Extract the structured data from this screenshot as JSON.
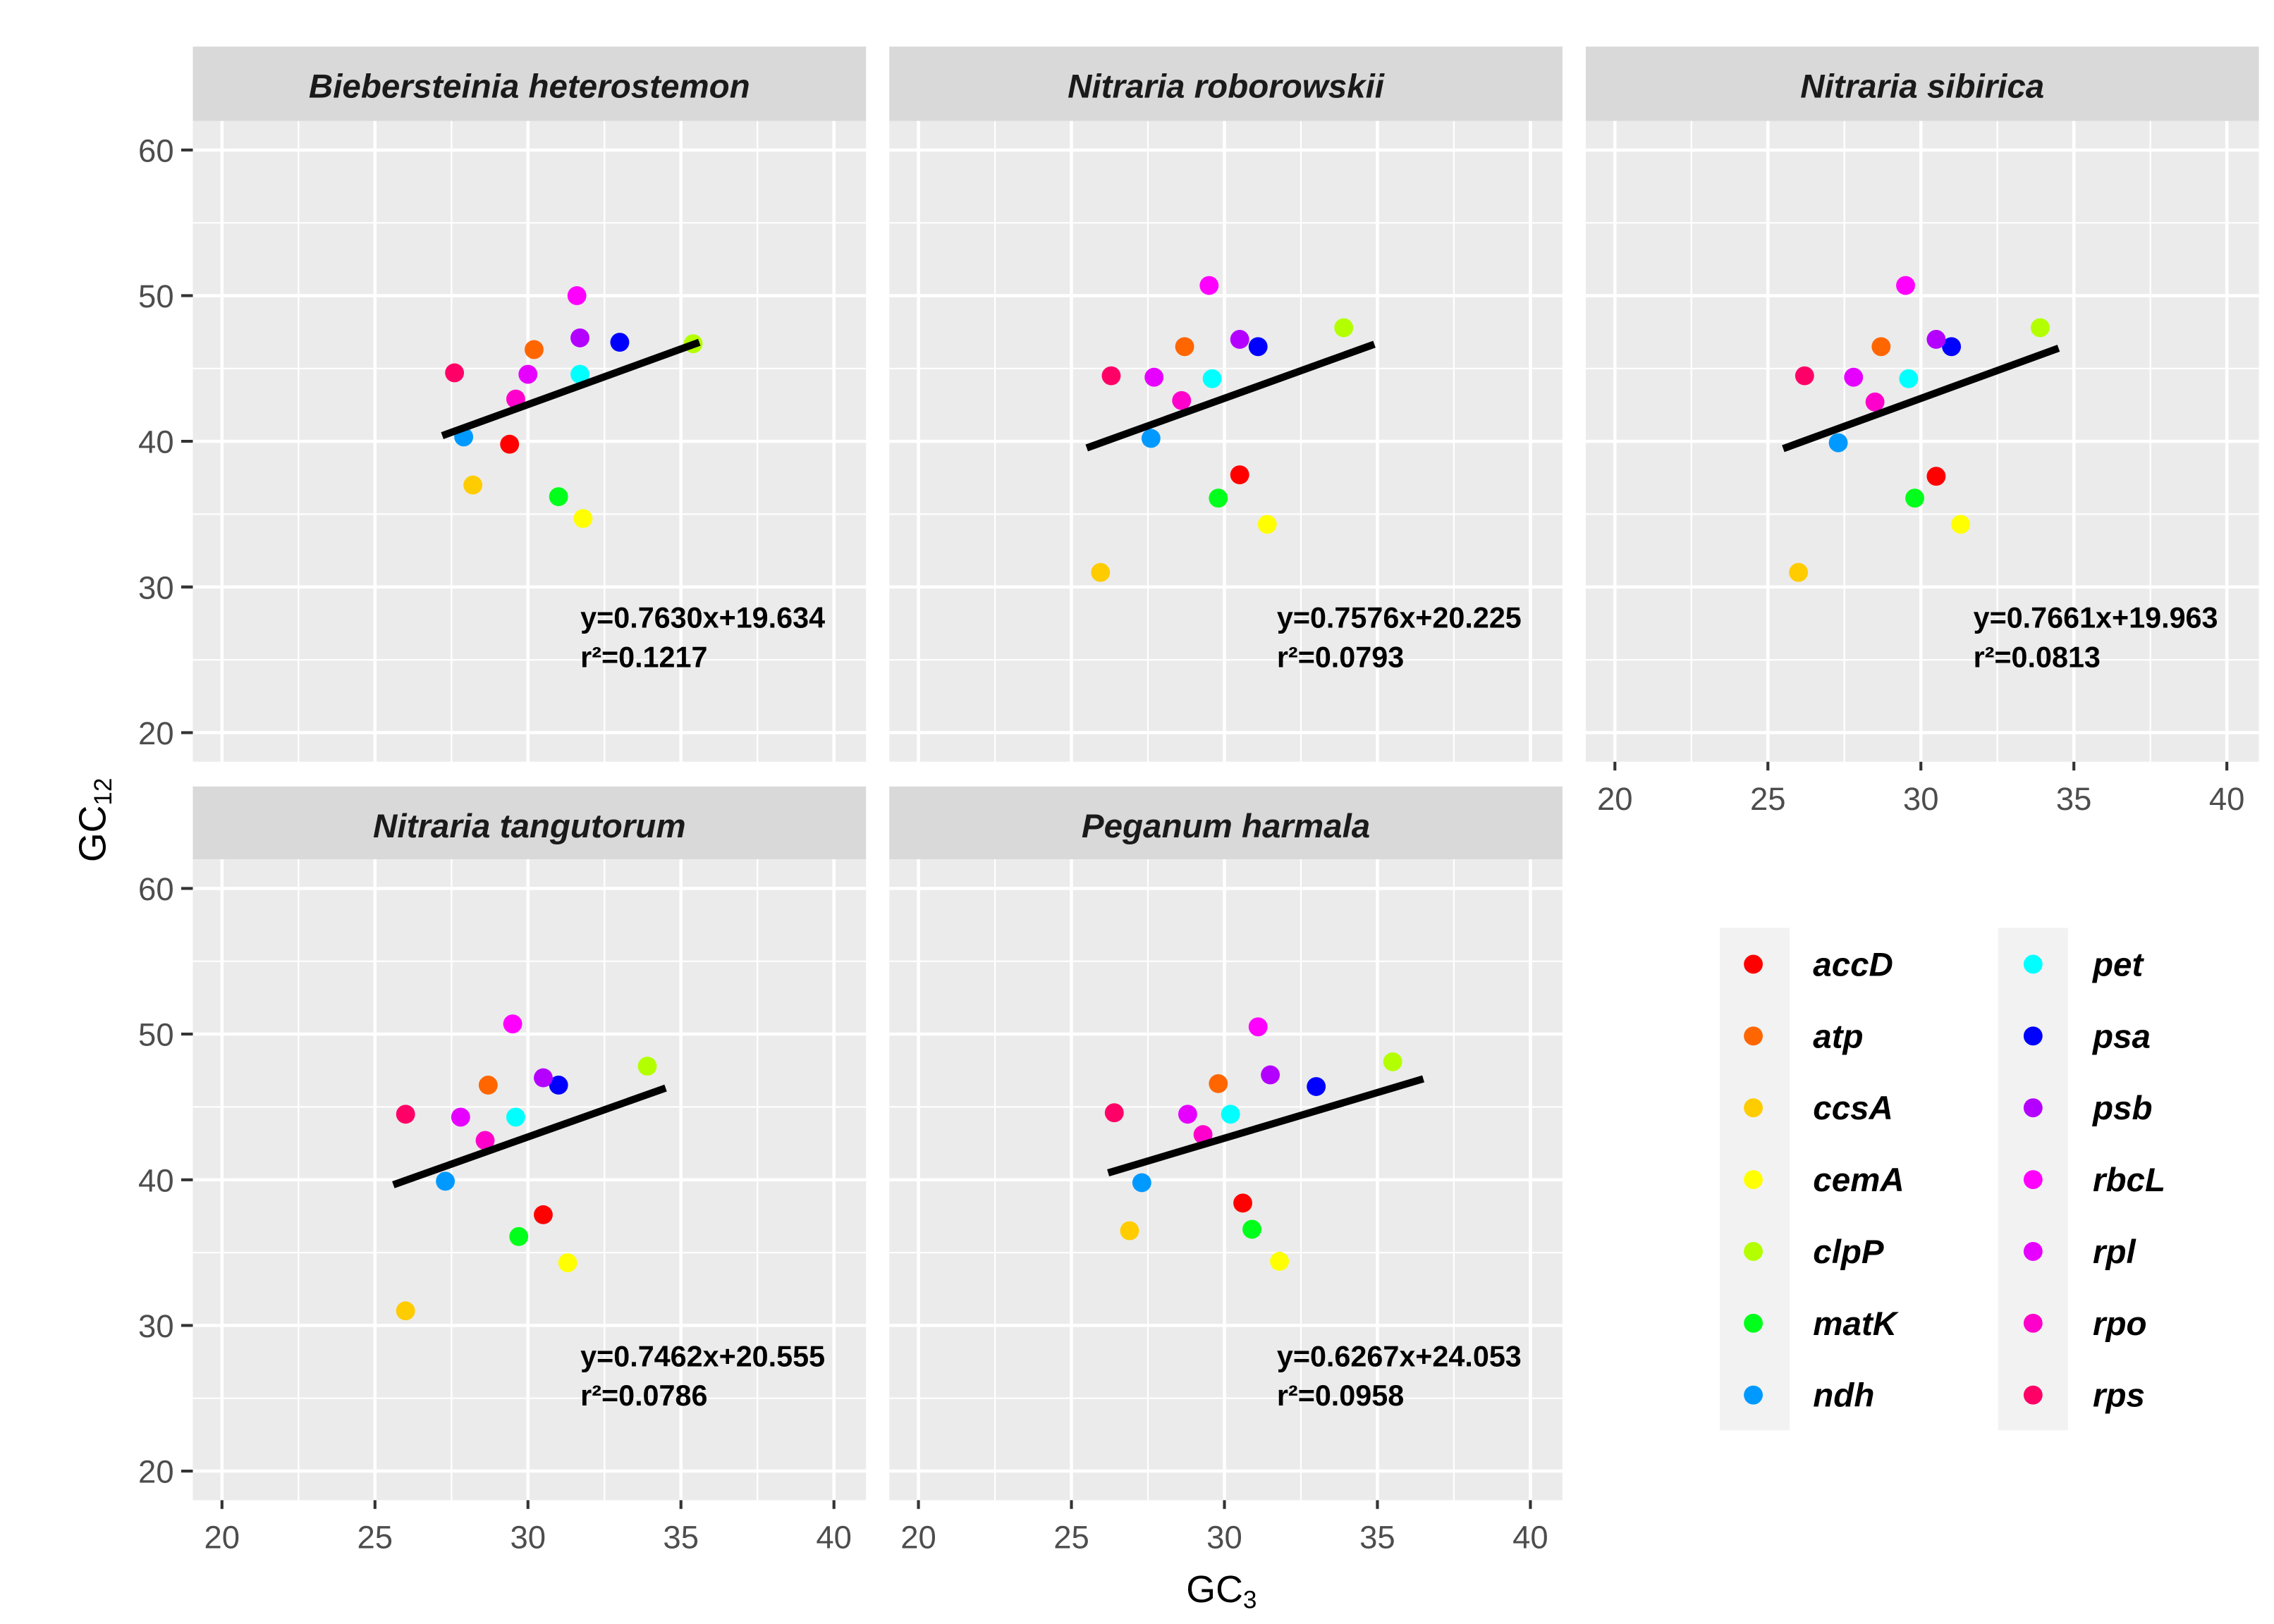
{
  "chart_data": {
    "type": "scatter",
    "layout": "facet-grid-2x3",
    "xlabel": "GC3",
    "ylabel": "GC12",
    "xlim": [
      20,
      40
    ],
    "ylim": [
      20,
      60
    ],
    "x_ticks": [
      20,
      25,
      30,
      35,
      40
    ],
    "y_ticks": [
      20,
      30,
      40,
      50,
      60
    ],
    "grid": true,
    "legend_placement": "bottom-right",
    "genes": [
      "accD",
      "atp",
      "ccsA",
      "cemA",
      "clpP",
      "matK",
      "ndh",
      "pet",
      "psa",
      "psb",
      "rbcL",
      "rpl",
      "rpo",
      "rps"
    ],
    "colors": {
      "accD": "#ff0000",
      "atp": "#ff6600",
      "ccsA": "#ffcc00",
      "cemA": "#ffff00",
      "clpP": "#b3ff00",
      "matK": "#00ff1a",
      "ndh": "#0099ff",
      "pet": "#00ffff",
      "psa": "#0000ff",
      "psb": "#b300ff",
      "rbcL": "#ff00ff",
      "rpl": "#e600ff",
      "rpo": "#ff00cc",
      "rps": "#ff0066"
    },
    "panels": [
      {
        "title": "Biebersteinia heterostemon",
        "equation": "y=0.7630x+19.634",
        "r2": "r²=0.1217",
        "slope": 0.763,
        "intercept": 19.634,
        "fit_x": [
          27.2,
          35.6
        ],
        "points": {
          "accD": [
            29.4,
            39.8
          ],
          "atp": [
            30.2,
            46.3
          ],
          "ccsA": [
            28.2,
            37.0
          ],
          "cemA": [
            31.8,
            34.7
          ],
          "clpP": [
            35.4,
            46.7
          ],
          "matK": [
            31.0,
            36.2
          ],
          "ndh": [
            27.9,
            40.3
          ],
          "pet": [
            31.7,
            44.6
          ],
          "psa": [
            33.0,
            46.8
          ],
          "psb": [
            31.7,
            47.1
          ],
          "rbcL": [
            31.6,
            50.0
          ],
          "rpl": [
            30.0,
            44.6
          ],
          "rpo": [
            29.6,
            42.9
          ],
          "rps": [
            27.6,
            44.7
          ]
        }
      },
      {
        "title": "Nitraria roborowskii",
        "equation": "y=0.7576x+20.225",
        "r2": "r²=0.0793",
        "slope": 0.7576,
        "intercept": 20.225,
        "fit_x": [
          25.5,
          34.9
        ],
        "points": {
          "accD": [
            30.5,
            37.7
          ],
          "atp": [
            28.7,
            46.5
          ],
          "ccsA": [
            25.95,
            31.0
          ],
          "cemA": [
            31.4,
            34.3
          ],
          "clpP": [
            33.9,
            47.8
          ],
          "matK": [
            29.8,
            36.1
          ],
          "ndh": [
            27.6,
            40.2
          ],
          "pet": [
            29.6,
            44.3
          ],
          "psa": [
            31.1,
            46.5
          ],
          "psb": [
            30.5,
            47.0
          ],
          "rbcL": [
            29.5,
            50.7
          ],
          "rpl": [
            27.7,
            44.4
          ],
          "rpo": [
            28.6,
            42.8
          ],
          "rps": [
            26.3,
            44.5
          ]
        }
      },
      {
        "title": "Nitraria sibirica",
        "equation": "y=0.7661x+19.963",
        "r2": "r²=0.0813",
        "slope": 0.7661,
        "intercept": 19.963,
        "fit_x": [
          25.5,
          34.5
        ],
        "points": {
          "accD": [
            30.5,
            37.6
          ],
          "atp": [
            28.7,
            46.5
          ],
          "ccsA": [
            26.0,
            31.0
          ],
          "cemA": [
            31.3,
            34.3
          ],
          "clpP": [
            33.9,
            47.8
          ],
          "matK": [
            29.8,
            36.1
          ],
          "ndh": [
            27.3,
            39.9
          ],
          "pet": [
            29.6,
            44.3
          ],
          "psa": [
            31.0,
            46.5
          ],
          "psb": [
            30.5,
            47.0
          ],
          "rbcL": [
            29.5,
            50.7
          ],
          "rpl": [
            27.8,
            44.4
          ],
          "rpo": [
            28.5,
            42.7
          ],
          "rps": [
            26.2,
            44.5
          ]
        }
      },
      {
        "title": "Nitraria tangutorum",
        "equation": "y=0.7462x+20.555",
        "r2": "r²=0.0786",
        "slope": 0.7462,
        "intercept": 20.555,
        "fit_x": [
          25.6,
          34.5
        ],
        "points": {
          "accD": [
            30.5,
            37.6
          ],
          "atp": [
            28.7,
            46.5
          ],
          "ccsA": [
            26.0,
            31.0
          ],
          "cemA": [
            31.3,
            34.3
          ],
          "clpP": [
            33.9,
            47.8
          ],
          "matK": [
            29.7,
            36.1
          ],
          "ndh": [
            27.3,
            39.9
          ],
          "pet": [
            29.6,
            44.3
          ],
          "psa": [
            31.0,
            46.5
          ],
          "psb": [
            30.5,
            47.0
          ],
          "rbcL": [
            29.5,
            50.7
          ],
          "rpl": [
            27.8,
            44.3
          ],
          "rpo": [
            28.6,
            42.7
          ],
          "rps": [
            26.0,
            44.5
          ]
        }
      },
      {
        "title": "Peganum harmala",
        "equation": "y=0.6267x+24.053",
        "r2": "r²=0.0958",
        "slope": 0.6267,
        "intercept": 24.053,
        "fit_x": [
          26.2,
          36.5
        ],
        "points": {
          "accD": [
            30.6,
            38.4
          ],
          "atp": [
            29.8,
            46.6
          ],
          "ccsA": [
            26.9,
            36.5
          ],
          "cemA": [
            31.8,
            34.4
          ],
          "clpP": [
            35.5,
            48.1
          ],
          "matK": [
            30.9,
            36.6
          ],
          "ndh": [
            27.3,
            39.8
          ],
          "pet": [
            30.2,
            44.5
          ],
          "psa": [
            33.0,
            46.4
          ],
          "psb": [
            31.5,
            47.2
          ],
          "rbcL": [
            31.1,
            50.5
          ],
          "rpl": [
            28.8,
            44.5
          ],
          "rpo": [
            29.3,
            43.1
          ],
          "rps": [
            26.4,
            44.6
          ]
        }
      }
    ]
  }
}
